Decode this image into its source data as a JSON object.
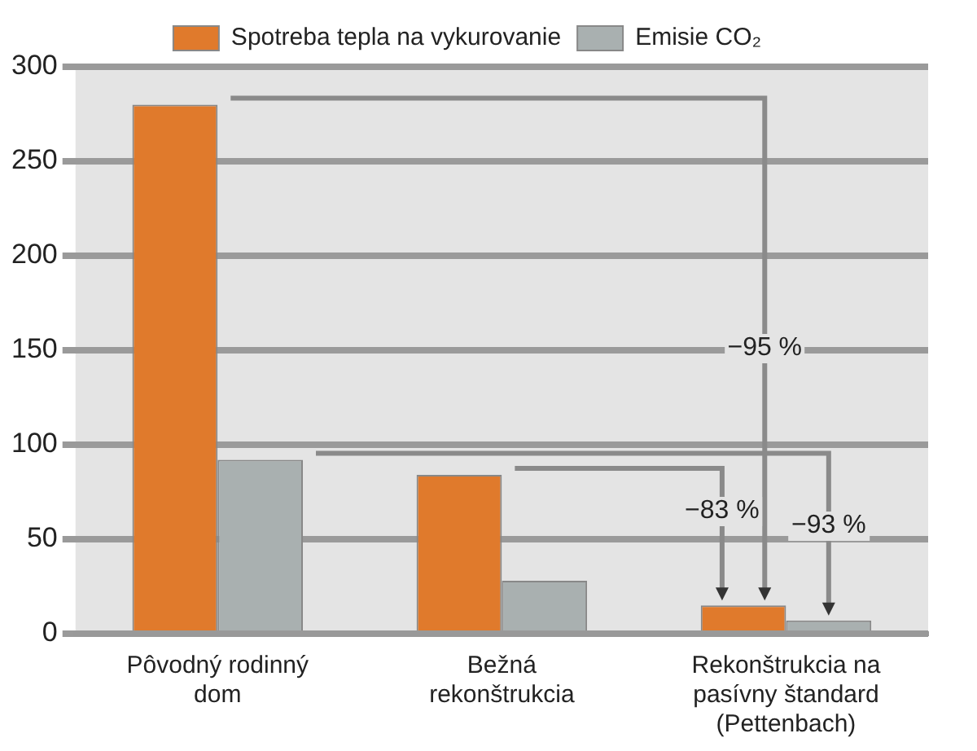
{
  "chart_data": {
    "type": "bar",
    "categories": [
      "Pôvodný rodinný dom",
      "Bežná rekonštrukcia",
      "Rekonštrukcia na pasívny štandard (Pettenbach)"
    ],
    "series": [
      {
        "name": "Spotreba tepla na vykurovanie",
        "color": "#e07a2c",
        "values": [
          280,
          84,
          15
        ]
      },
      {
        "name": "Emisie CO₂",
        "color": "#a9b0b0",
        "values": [
          92,
          28,
          7
        ]
      }
    ],
    "ylim": [
      0,
      300
    ],
    "yticks": [
      0,
      50,
      100,
      150,
      200,
      250,
      300
    ],
    "grid": "y",
    "legend": "top",
    "annotations": [
      "−95 %",
      "−83 %",
      "−93 %"
    ]
  }
}
